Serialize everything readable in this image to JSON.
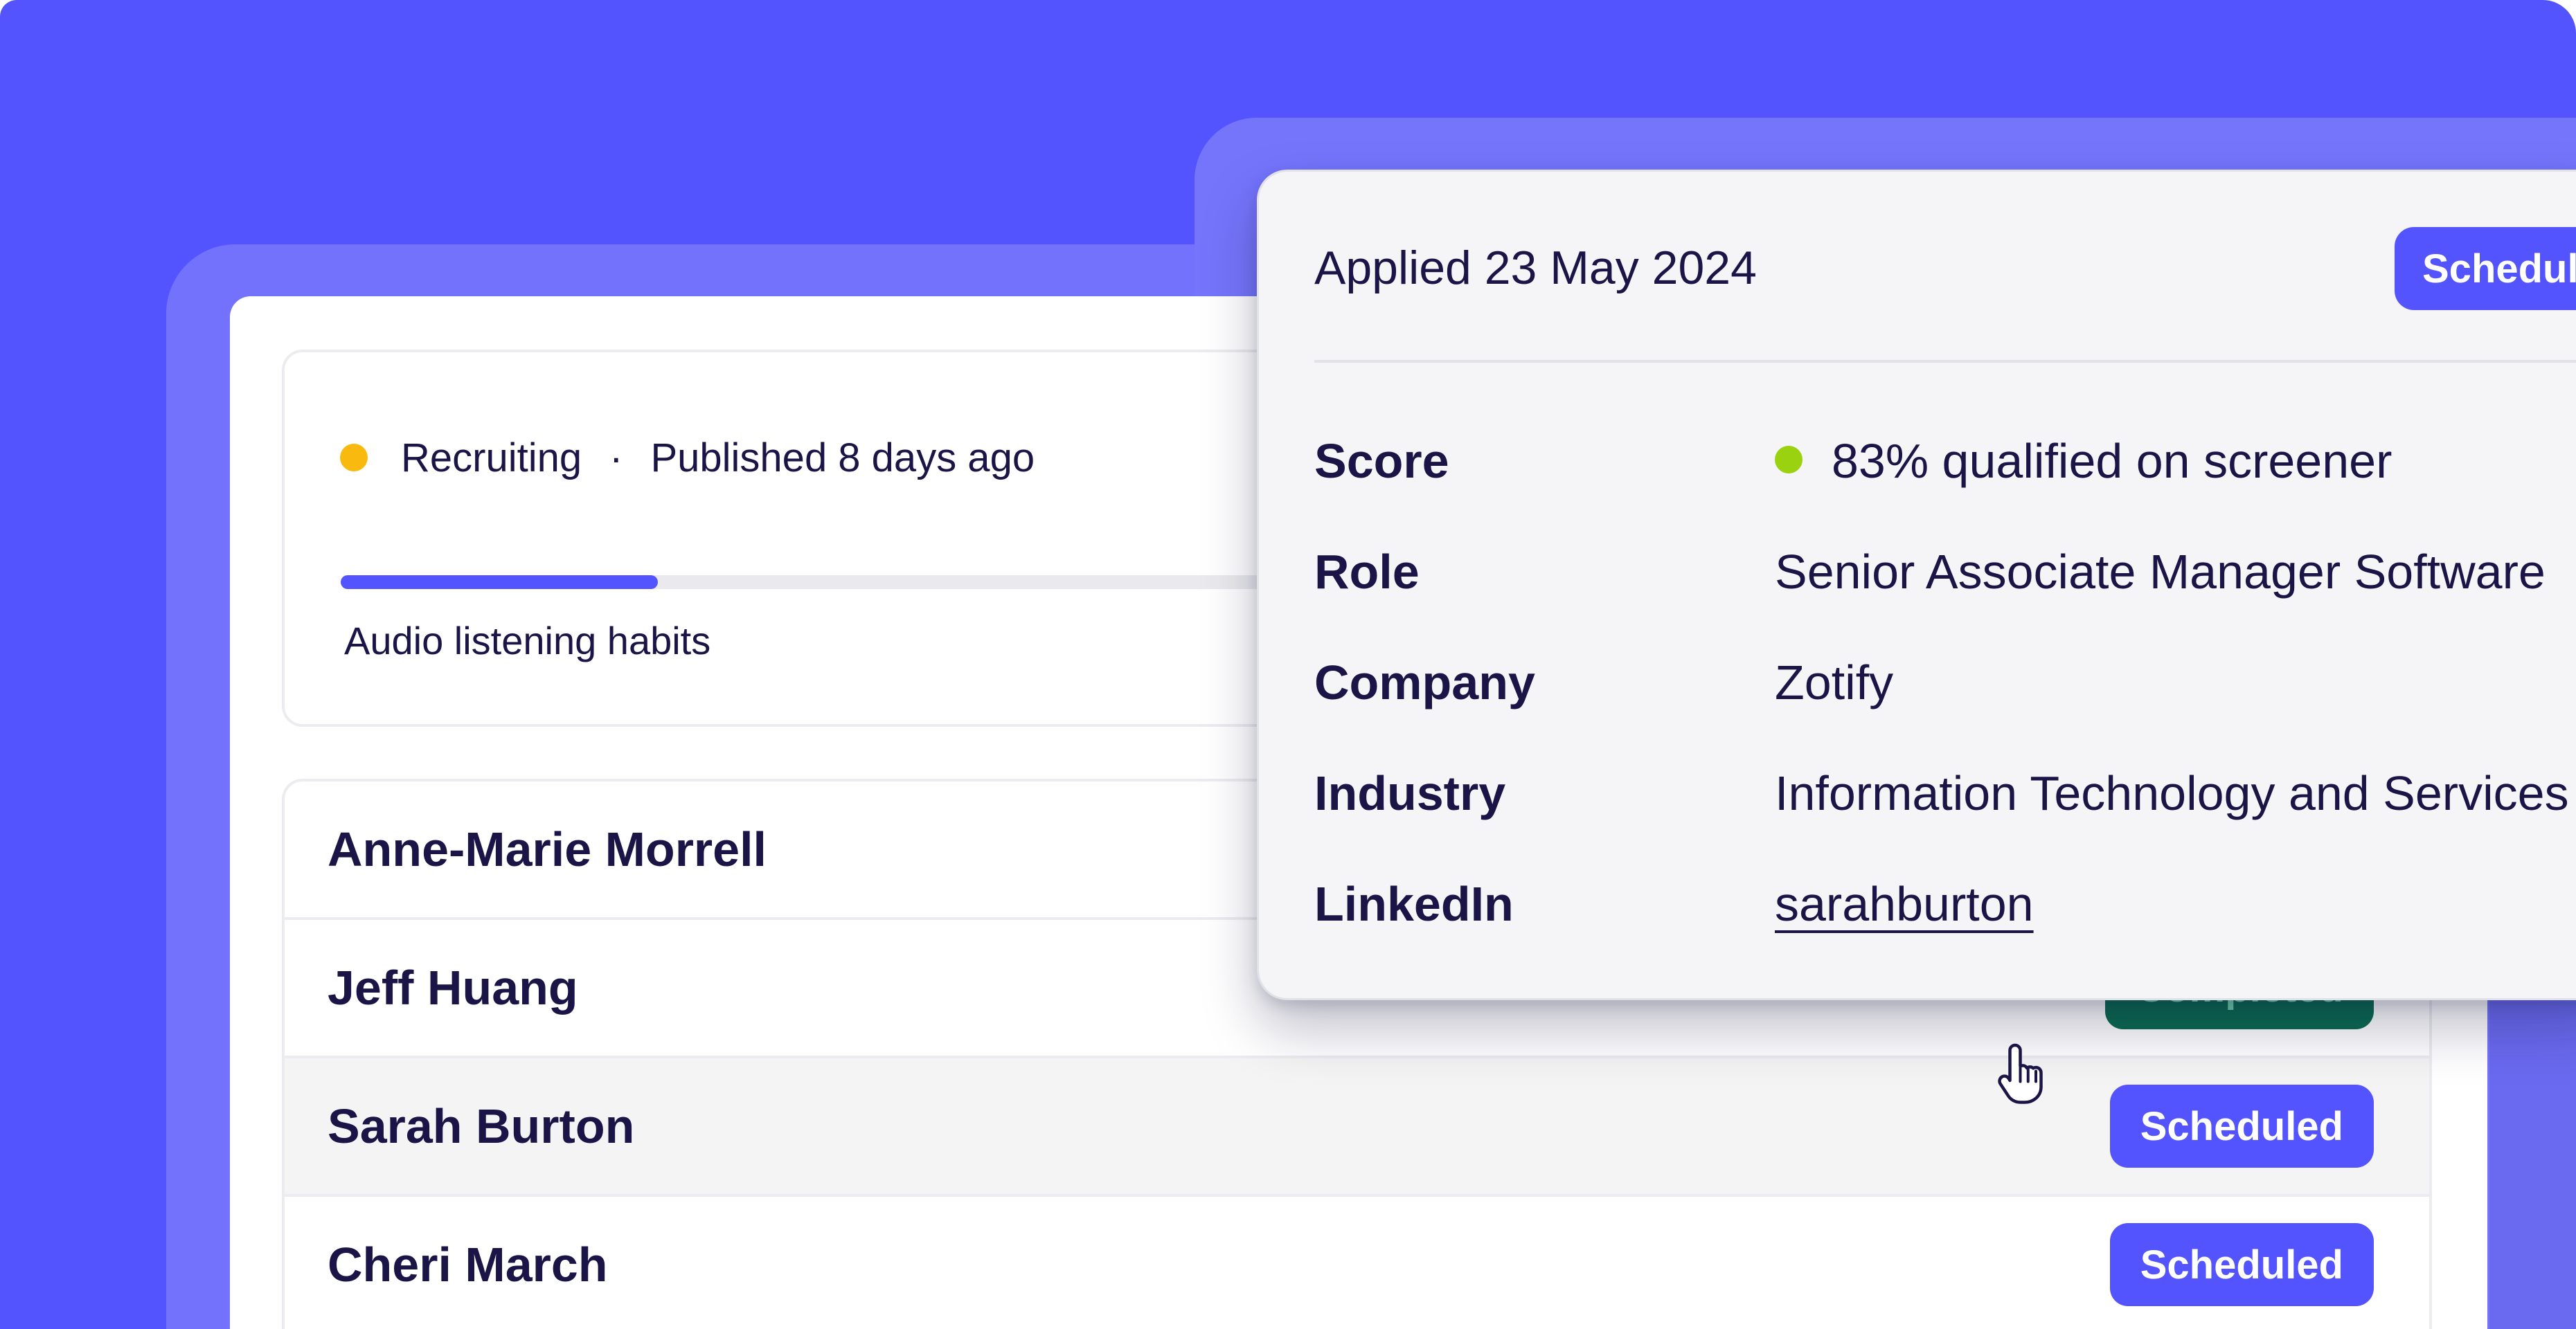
{
  "study": {
    "status_label": "Recruiting",
    "separator": "·",
    "published": "Published 8 days ago",
    "progress_percent": 26,
    "name": "Audio listening habits",
    "status_color": "#f9b90f"
  },
  "participants": [
    {
      "name": "Anne-Marie Morrell",
      "status": ""
    },
    {
      "name": "Jeff Huang",
      "status": "Completed"
    },
    {
      "name": "Sarah Burton",
      "status": "Scheduled"
    },
    {
      "name": "Cheri March",
      "status": "Scheduled"
    }
  ],
  "popover": {
    "applied": "Applied 23 May 2024",
    "status": "Scheduled",
    "fields": {
      "score_label": "Score",
      "score_value": "83% qualified on screener",
      "role_label": "Role",
      "role_value": "Senior Associate Manager Software",
      "company_label": "Company",
      "company_value": "Zotify",
      "industry_label": "Industry",
      "industry_value": "Information Technology and Services",
      "linkedin_label": "LinkedIn",
      "linkedin_value": "sarahburton"
    }
  },
  "colors": {
    "brand": "#5454ff",
    "completed": "#0a6b50",
    "score_ok": "#9ad210"
  },
  "icons": {
    "cursor": "hand-pointer-icon"
  }
}
